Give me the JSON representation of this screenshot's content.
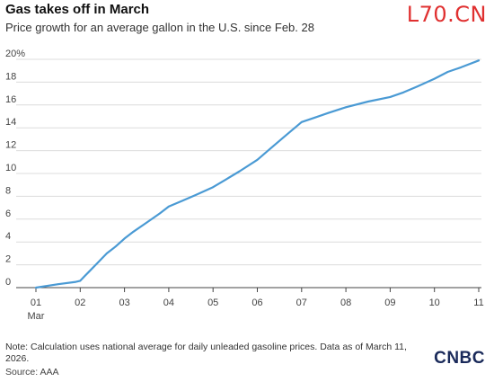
{
  "header": {
    "title": "Gas takes off in March",
    "subtitle": "Price growth for an average gallon in the U.S. since Feb. 28",
    "watermark": "L70.CN"
  },
  "footer": {
    "note": "Note: Calculation uses national average for daily unleaded gasoline prices. Data as of March 11, 2026.",
    "source": "Source: AAA",
    "logo": "CNBC"
  },
  "colors": {
    "line": "#4a9ad4",
    "grid": "#dcdcdc",
    "axis": "#444444"
  },
  "chart_data": {
    "type": "line",
    "title": "Gas takes off in March",
    "subtitle": "Price growth for an average gallon in the U.S. since Feb. 28",
    "xlabel": "",
    "ylabel": "",
    "xlim": [
      1,
      11
    ],
    "ylim": [
      0,
      20
    ],
    "yticks": [
      0,
      2,
      4,
      6,
      8,
      10,
      12,
      14,
      16,
      18,
      20
    ],
    "ytick_labels": [
      "0",
      "2",
      "4",
      "6",
      "8",
      "10",
      "12",
      "14",
      "16",
      "18",
      "20%"
    ],
    "xticks": [
      1,
      2,
      3,
      4,
      5,
      6,
      7,
      8,
      9,
      10,
      11
    ],
    "xtick_labels": [
      "01",
      "02",
      "03",
      "04",
      "05",
      "06",
      "07",
      "08",
      "09",
      "10",
      "11"
    ],
    "xtick_sublabel": "Mar",
    "grid": "horizontal",
    "series": [
      {
        "x": [
          1,
          1.5,
          1.9,
          2.0,
          2.1,
          2.2,
          2.4,
          2.6,
          2.8,
          3.0,
          3.2,
          3.5,
          3.8,
          4.0,
          4.3,
          4.6,
          5.0,
          5.3,
          5.6,
          6.0,
          6.3,
          6.6,
          7.0,
          7.3,
          7.6,
          8.0,
          8.5,
          9.0,
          9.3,
          9.6,
          10.0,
          10.3,
          10.6,
          11.0
        ],
        "values": [
          0.0,
          0.3,
          0.5,
          0.6,
          1.0,
          1.4,
          2.2,
          3.0,
          3.6,
          4.3,
          4.9,
          5.7,
          6.5,
          7.1,
          7.6,
          8.1,
          8.8,
          9.5,
          10.2,
          11.2,
          12.2,
          13.2,
          14.5,
          14.9,
          15.3,
          15.8,
          16.3,
          16.7,
          17.1,
          17.6,
          18.3,
          18.9,
          19.3,
          19.9
        ]
      }
    ]
  }
}
